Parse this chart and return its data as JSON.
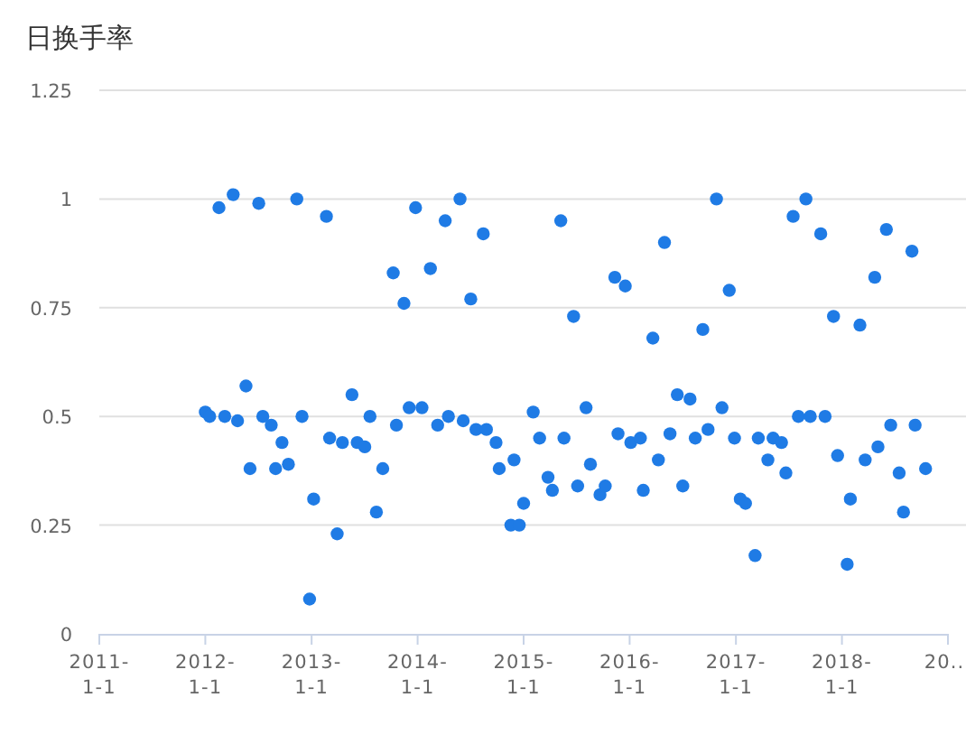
{
  "chart_data": {
    "type": "scatter",
    "title": "日换手率",
    "color": "#1f7be5",
    "marker": "circle",
    "grid": "y",
    "xlim": [
      "2011-01-01",
      "2019-01-01"
    ],
    "xticks": [
      {
        "value": "2011-01-01",
        "label": "2011-\n1-1"
      },
      {
        "value": "2012-01-01",
        "label": "2012-\n1-1"
      },
      {
        "value": "2013-01-01",
        "label": "2013-\n1-1"
      },
      {
        "value": "2014-01-01",
        "label": "2014-\n1-1"
      },
      {
        "value": "2015-01-01",
        "label": "2015-\n1-1"
      },
      {
        "value": "2016-01-01",
        "label": "2016-\n1-1"
      },
      {
        "value": "2017-01-01",
        "label": "2017-\n1-1"
      },
      {
        "value": "2018-01-01",
        "label": "2018-\n1-1"
      },
      {
        "value": "2019-01-01",
        "label": "20..."
      }
    ],
    "ylim": [
      0,
      1.25
    ],
    "yticks": [
      0,
      0.25,
      0.5,
      0.75,
      1,
      1.25
    ],
    "x": [
      "2012-01-01",
      "2012-01-16",
      "2012-02-17",
      "2012-03-08",
      "2012-04-06",
      "2012-04-21",
      "2012-05-20",
      "2012-06-03",
      "2012-07-03",
      "2012-07-17",
      "2012-08-15",
      "2012-08-30",
      "2012-09-21",
      "2012-10-13",
      "2012-11-11",
      "2012-11-29",
      "2012-12-25",
      "2013-01-08",
      "2013-02-21",
      "2013-03-04",
      "2013-03-30",
      "2013-04-17",
      "2013-05-20",
      "2013-06-07",
      "2013-07-03",
      "2013-07-21",
      "2013-08-12",
      "2013-09-03",
      "2013-10-09",
      "2013-10-20",
      "2013-11-15",
      "2013-12-03",
      "2013-12-25",
      "2014-01-16",
      "2014-02-14",
      "2014-03-11",
      "2014-04-06",
      "2014-04-17",
      "2014-05-27",
      "2014-06-07",
      "2014-07-03",
      "2014-07-21",
      "2014-08-15",
      "2014-08-26",
      "2014-09-28",
      "2014-10-09",
      "2014-11-18",
      "2014-11-29",
      "2014-12-17",
      "2015-01-01",
      "2015-02-03",
      "2015-02-25",
      "2015-03-26",
      "2015-04-10",
      "2015-05-09",
      "2015-05-20",
      "2015-06-22",
      "2015-07-06",
      "2015-08-04",
      "2015-08-19",
      "2015-09-21",
      "2015-10-09",
      "2015-11-11",
      "2015-11-22",
      "2015-12-17",
      "2016-01-05",
      "2016-02-07",
      "2016-02-17",
      "2016-03-21",
      "2016-04-09",
      "2016-04-30",
      "2016-05-19",
      "2016-06-13",
      "2016-07-02",
      "2016-07-27",
      "2016-08-14",
      "2016-09-09",
      "2016-09-27",
      "2016-10-26",
      "2016-11-14",
      "2016-12-09",
      "2016-12-27",
      "2017-01-16",
      "2017-02-03",
      "2017-03-08",
      "2017-03-19",
      "2017-04-21",
      "2017-05-09",
      "2017-06-07",
      "2017-06-22",
      "2017-07-17",
      "2017-08-04",
      "2017-08-30",
      "2017-09-14",
      "2017-10-20",
      "2017-11-04",
      "2017-12-03",
      "2017-12-17",
      "2018-01-19",
      "2018-01-30",
      "2018-03-04",
      "2018-03-22",
      "2018-04-24",
      "2018-05-05",
      "2018-06-03",
      "2018-06-18",
      "2018-07-17",
      "2018-08-01",
      "2018-08-30",
      "2018-09-10",
      "2018-10-16"
    ],
    "values": [
      0.51,
      0.5,
      0.98,
      0.5,
      1.01,
      0.49,
      0.57,
      0.38,
      0.99,
      0.5,
      0.48,
      0.38,
      0.44,
      0.39,
      1.0,
      0.5,
      0.08,
      0.31,
      0.96,
      0.45,
      0.23,
      0.44,
      0.55,
      0.44,
      0.43,
      0.5,
      0.28,
      0.38,
      0.83,
      0.48,
      0.76,
      0.52,
      0.98,
      0.52,
      0.84,
      0.48,
      0.95,
      0.5,
      1.0,
      0.49,
      0.77,
      0.47,
      0.92,
      0.47,
      0.44,
      0.38,
      0.25,
      0.4,
      0.25,
      0.3,
      0.51,
      0.45,
      0.36,
      0.33,
      0.95,
      0.45,
      0.73,
      0.34,
      0.52,
      0.39,
      0.32,
      0.34,
      0.82,
      0.46,
      0.8,
      0.44,
      0.45,
      0.33,
      0.68,
      0.4,
      0.9,
      0.46,
      0.55,
      0.34,
      0.54,
      0.45,
      0.7,
      0.47,
      1.0,
      0.52,
      0.79,
      0.45,
      0.31,
      0.3,
      0.18,
      0.45,
      0.4,
      0.45,
      0.44,
      0.37,
      0.96,
      0.5,
      1.0,
      0.5,
      0.92,
      0.5,
      0.73,
      0.41,
      0.16,
      0.31,
      0.71,
      0.4,
      0.82,
      0.43,
      0.93,
      0.48,
      0.37,
      0.28,
      0.88,
      0.48,
      0.38
    ]
  }
}
